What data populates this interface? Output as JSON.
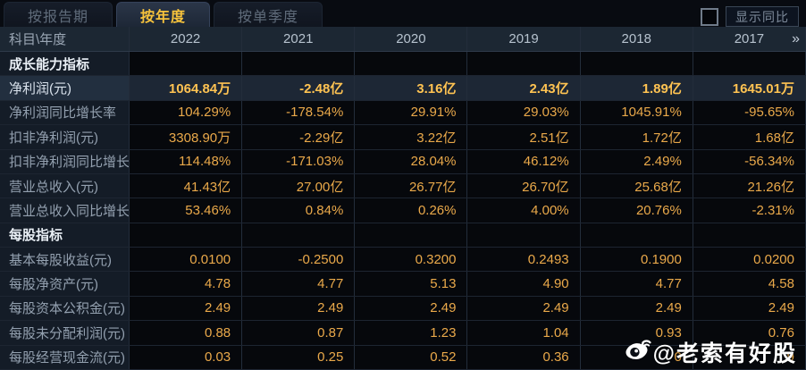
{
  "tabs": [
    {
      "label": "按报告期",
      "active": false
    },
    {
      "label": "按年度",
      "active": true
    },
    {
      "label": "按单季度",
      "active": false
    }
  ],
  "controls": {
    "show_yoy_label": "显示同比",
    "checkbox_checked": false
  },
  "table": {
    "corner_label": "科目\\年度",
    "years": [
      "2022",
      "2021",
      "2020",
      "2019",
      "2018",
      "2017"
    ],
    "more_years_icon": "»",
    "rows": [
      {
        "label": "成长能力指标",
        "type": "section",
        "values": [
          "",
          "",
          "",
          "",
          "",
          ""
        ]
      },
      {
        "label": "净利润(元)",
        "type": "highlight",
        "values": [
          "1064.84万",
          "-2.48亿",
          "3.16亿",
          "2.43亿",
          "1.89亿",
          "1645.01万"
        ]
      },
      {
        "label": "净利润同比增长率",
        "type": "normal",
        "values": [
          "104.29%",
          "-178.54%",
          "29.91%",
          "29.03%",
          "1045.91%",
          "-95.65%"
        ]
      },
      {
        "label": "扣非净利润(元)",
        "type": "normal",
        "values": [
          "3308.90万",
          "-2.29亿",
          "3.22亿",
          "2.51亿",
          "1.72亿",
          "1.68亿"
        ]
      },
      {
        "label": "扣非净利润同比增长率",
        "type": "normal",
        "values": [
          "114.48%",
          "-171.03%",
          "28.04%",
          "46.12%",
          "2.49%",
          "-56.34%"
        ]
      },
      {
        "label": "营业总收入(元)",
        "type": "normal",
        "values": [
          "41.43亿",
          "27.00亿",
          "26.77亿",
          "26.70亿",
          "25.68亿",
          "21.26亿"
        ]
      },
      {
        "label": "营业总收入同比增长率",
        "type": "normal",
        "values": [
          "53.46%",
          "0.84%",
          "0.26%",
          "4.00%",
          "20.76%",
          "-2.31%"
        ]
      },
      {
        "label": "每股指标",
        "type": "section",
        "values": [
          "",
          "",
          "",
          "",
          "",
          ""
        ]
      },
      {
        "label": "基本每股收益(元)",
        "type": "normal",
        "values": [
          "0.0100",
          "-0.2500",
          "0.3200",
          "0.2493",
          "0.1900",
          "0.0200"
        ]
      },
      {
        "label": "每股净资产(元)",
        "type": "normal",
        "values": [
          "4.78",
          "4.77",
          "5.13",
          "4.90",
          "4.77",
          "4.58"
        ]
      },
      {
        "label": "每股资本公积金(元)",
        "type": "normal",
        "values": [
          "2.49",
          "2.49",
          "2.49",
          "2.49",
          "2.49",
          "2.49"
        ]
      },
      {
        "label": "每股未分配利润(元)",
        "type": "normal",
        "values": [
          "0.88",
          "0.87",
          "1.23",
          "1.04",
          "0.93",
          "0.76"
        ]
      },
      {
        "label": "每股经营现金流(元)",
        "type": "normal",
        "values": [
          "0.03",
          "0.25",
          "0.52",
          "0.36",
          "0",
          "9"
        ]
      }
    ]
  },
  "watermark": {
    "text": "@老索有好股",
    "icon": "weibo-icon"
  },
  "colors": {
    "accent_gold": "#f7c33c",
    "value_orange": "#eaa94a",
    "highlight_row_bg": "#1d2735",
    "header_bg": "#1c2733",
    "label_col_bg": "#141c27",
    "cell_bg": "#06080c"
  }
}
